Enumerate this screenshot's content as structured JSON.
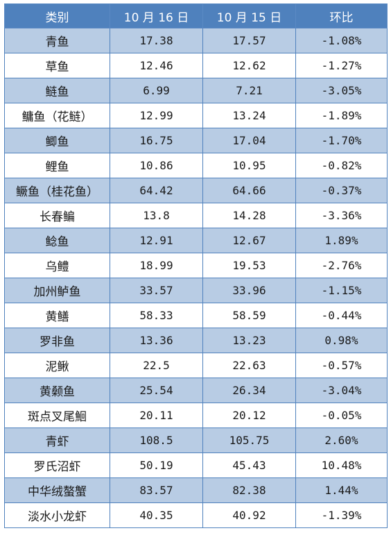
{
  "table": {
    "headers": [
      "类别",
      "10 月 16 日",
      "10 月 15 日",
      "环比"
    ],
    "rows": [
      {
        "name": "青鱼",
        "d16": "17.38",
        "d15": "17.57",
        "change": "-1.08%"
      },
      {
        "name": "草鱼",
        "d16": "12.46",
        "d15": "12.62",
        "change": "-1.27%"
      },
      {
        "name": "鲢鱼",
        "d16": "6.99",
        "d15": "7.21",
        "change": "-3.05%"
      },
      {
        "name": "鳙鱼（花鲢）",
        "d16": "12.99",
        "d15": "13.24",
        "change": "-1.89%"
      },
      {
        "name": "鲫鱼",
        "d16": "16.75",
        "d15": "17.04",
        "change": "-1.70%"
      },
      {
        "name": "鲤鱼",
        "d16": "10.86",
        "d15": "10.95",
        "change": "-0.82%"
      },
      {
        "name": "鳜鱼（桂花鱼）",
        "d16": "64.42",
        "d15": "64.66",
        "change": "-0.37%"
      },
      {
        "name": "长春鳊",
        "d16": "13.8",
        "d15": "14.28",
        "change": "-3.36%"
      },
      {
        "name": "鲶鱼",
        "d16": "12.91",
        "d15": "12.67",
        "change": "1.89%"
      },
      {
        "name": "乌鳢",
        "d16": "18.99",
        "d15": "19.53",
        "change": "-2.76%"
      },
      {
        "name": "加州鲈鱼",
        "d16": "33.57",
        "d15": "33.96",
        "change": "-1.15%"
      },
      {
        "name": "黄鳝",
        "d16": "58.33",
        "d15": "58.59",
        "change": "-0.44%"
      },
      {
        "name": "罗非鱼",
        "d16": "13.36",
        "d15": "13.23",
        "change": "0.98%"
      },
      {
        "name": "泥鳅",
        "d16": "22.5",
        "d15": "22.63",
        "change": "-0.57%"
      },
      {
        "name": "黄颡鱼",
        "d16": "25.54",
        "d15": "26.34",
        "change": "-3.04%"
      },
      {
        "name": "斑点叉尾鮰",
        "d16": "20.11",
        "d15": "20.12",
        "change": "-0.05%"
      },
      {
        "name": "青虾",
        "d16": "108.5",
        "d15": "105.75",
        "change": "2.60%"
      },
      {
        "name": "罗氏沼虾",
        "d16": "50.19",
        "d15": "45.43",
        "change": "10.48%"
      },
      {
        "name": "中华绒螯蟹",
        "d16": "83.57",
        "d15": "82.38",
        "change": "1.44%"
      },
      {
        "name": "淡水小龙虾",
        "d16": "40.35",
        "d15": "40.92",
        "change": "-1.39%"
      }
    ]
  },
  "colors": {
    "header_bg": "#4f81bd",
    "stripe_bg": "#b8cce4",
    "border": "#4f81bd"
  }
}
